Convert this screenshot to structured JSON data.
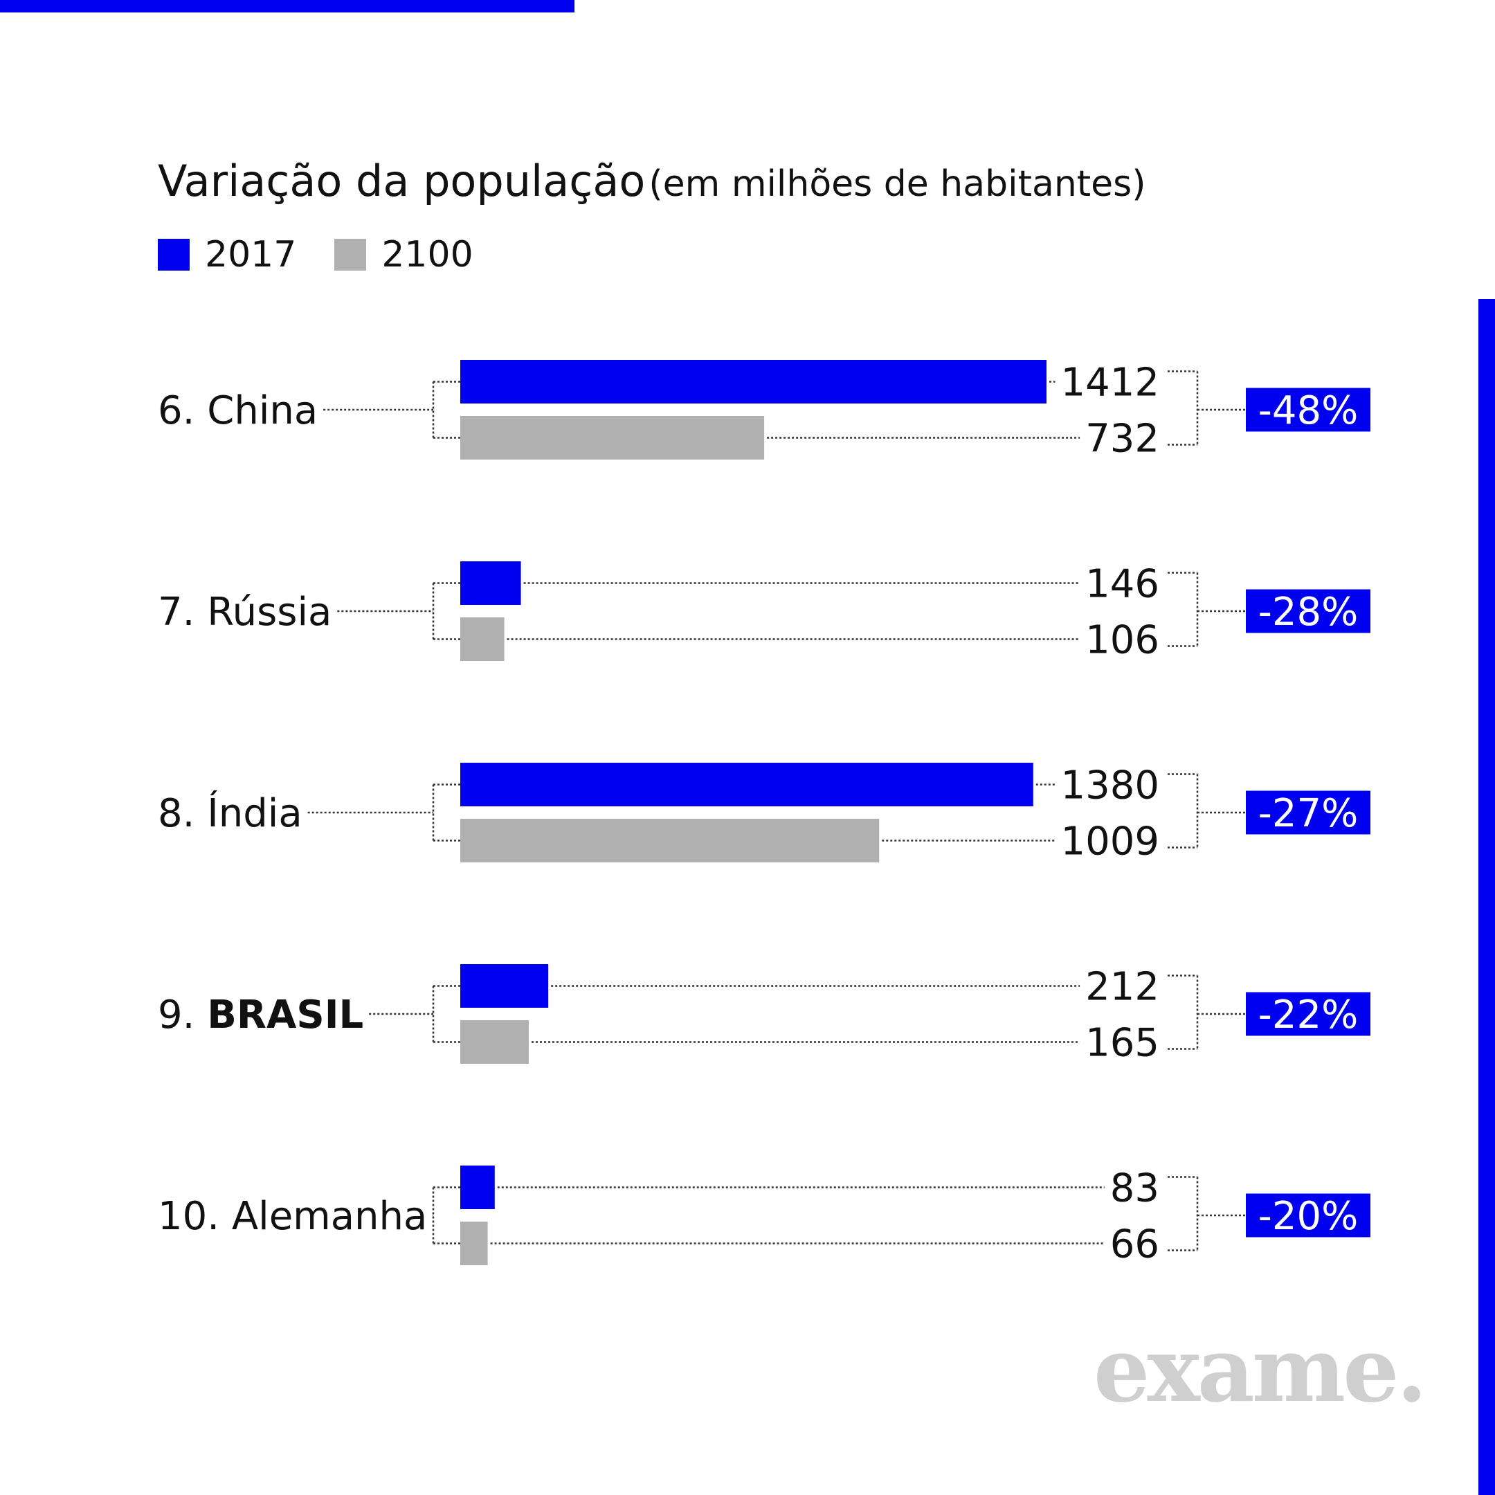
{
  "colors": {
    "accent": "#0000f0",
    "bar_2017": "#0000f0",
    "bar_2100": "#b0b0b0",
    "logo": "#cfcfcf"
  },
  "title": {
    "main": "Variação da população",
    "sub": "(em milhões de habitantes)"
  },
  "legend": [
    {
      "label": "2017",
      "color": "#0000f0"
    },
    {
      "label": "2100",
      "color": "#b0b0b0"
    }
  ],
  "logo_text": "exame.",
  "chart_data": {
    "type": "bar",
    "orientation": "horizontal",
    "title": "Variação da população (em milhões de habitantes)",
    "categories": [
      {
        "rank": "6.",
        "name": "China",
        "bold": false
      },
      {
        "rank": "7.",
        "name": "Rússia",
        "bold": false
      },
      {
        "rank": "8.",
        "name": "Índia",
        "bold": false
      },
      {
        "rank": "9.",
        "name": "BRASIL",
        "bold": true
      },
      {
        "rank": "10.",
        "name": "Alemanha",
        "bold": false
      }
    ],
    "series": [
      {
        "name": "2017",
        "values": [
          1412,
          146,
          1380,
          212,
          83
        ]
      },
      {
        "name": "2100",
        "values": [
          732,
          106,
          1009,
          165,
          66
        ]
      }
    ],
    "change_labels": [
      "-48%",
      "-28%",
      "-27%",
      "-22%",
      "-20%"
    ],
    "xlim": [
      0,
      1412
    ],
    "legend_position": "top-left",
    "grid": false
  }
}
